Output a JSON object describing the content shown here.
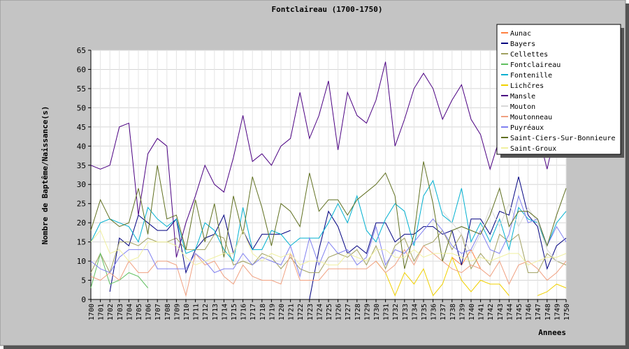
{
  "chart_data": {
    "type": "line",
    "title": "Fontclaireau (1700-1750)",
    "xlabel": "Annees",
    "ylabel": "Nombre de Baptême/Naissance(s)",
    "ylim": [
      0,
      65
    ],
    "yticks": [
      0,
      5,
      10,
      15,
      20,
      25,
      30,
      35,
      40,
      45,
      50,
      55,
      60,
      65
    ],
    "grid": true,
    "legend_position": "top-right",
    "x": [
      1700,
      1701,
      1702,
      1703,
      1704,
      1705,
      1706,
      1707,
      1708,
      1709,
      1710,
      1711,
      1712,
      1713,
      1714,
      1715,
      1716,
      1717,
      1718,
      1719,
      1720,
      1721,
      1722,
      1723,
      1724,
      1725,
      1726,
      1727,
      1728,
      1729,
      1730,
      1731,
      1732,
      1733,
      1734,
      1735,
      1736,
      1737,
      1738,
      1739,
      1740,
      1741,
      1742,
      1743,
      1744,
      1745,
      1746,
      1747,
      1748,
      1749,
      1750
    ],
    "series": [
      {
        "name": "Aunac",
        "color": "#ff8040",
        "values": [
          null,
          null,
          null,
          null,
          null,
          null,
          null,
          null,
          null,
          null,
          null,
          null,
          null,
          null,
          null,
          null,
          null,
          null,
          null,
          null,
          null,
          null,
          null,
          null,
          null,
          null,
          null,
          null,
          null,
          null,
          null,
          null,
          null,
          null,
          null,
          null,
          null,
          null,
          11,
          9,
          13,
          8,
          null,
          null,
          null,
          null,
          null,
          null,
          null,
          null,
          null
        ]
      },
      {
        "name": "Bayers",
        "color": "#000080",
        "values": [
          null,
          null,
          2,
          16,
          14,
          22,
          20,
          18,
          18,
          21,
          7,
          13,
          16,
          17,
          22,
          12,
          18,
          13,
          17,
          17,
          17,
          18,
          null,
          0,
          13,
          23,
          19,
          12,
          14,
          12,
          20,
          20,
          15,
          17,
          17,
          19,
          19,
          17,
          18,
          9,
          21,
          21,
          17,
          23,
          22,
          32,
          22,
          19,
          8,
          14,
          16
        ]
      },
      {
        "name": "Cellettes",
        "color": "#a0a060",
        "values": [
          7,
          12,
          7,
          15,
          15,
          14,
          16,
          15,
          15,
          16,
          13,
          13,
          13,
          17,
          16,
          9,
          10,
          9,
          12,
          11,
          8,
          11,
          8,
          7,
          7,
          11,
          12,
          11,
          13,
          9,
          14,
          8,
          14,
          16,
          10,
          14,
          15,
          18,
          13,
          17,
          8,
          12,
          9,
          17,
          15,
          17,
          7,
          7,
          12,
          10,
          9
        ]
      },
      {
        "name": "Fontclaireau",
        "color": "#60c060",
        "values": [
          3,
          12,
          4,
          5,
          7,
          6,
          3,
          null,
          null,
          null,
          null,
          null,
          null,
          null,
          null,
          null,
          null,
          null,
          null,
          null,
          null,
          null,
          null,
          null,
          null,
          null,
          null,
          null,
          null,
          null,
          null,
          null,
          null,
          null,
          null,
          null,
          null,
          null,
          null,
          null,
          null,
          null,
          null,
          null,
          null,
          null,
          null,
          null,
          null,
          null,
          null
        ]
      },
      {
        "name": "Fontenille",
        "color": "#00b0d0",
        "values": [
          15,
          20,
          21,
          20,
          19,
          15,
          24,
          21,
          19,
          21,
          12,
          13,
          20,
          18,
          13,
          10,
          24,
          13,
          13,
          18,
          17,
          14,
          16,
          16,
          16,
          20,
          25,
          20,
          27,
          18,
          15,
          21,
          25,
          23,
          14,
          27,
          31,
          22,
          20,
          29,
          15,
          20,
          15,
          21,
          13,
          24,
          21,
          20,
          14,
          20,
          23
        ]
      },
      {
        "name": "Lichčres",
        "color": "#f0d000",
        "values": [
          null,
          null,
          null,
          null,
          null,
          null,
          null,
          null,
          null,
          null,
          null,
          null,
          null,
          null,
          null,
          null,
          null,
          null,
          null,
          null,
          null,
          null,
          null,
          null,
          null,
          null,
          null,
          null,
          null,
          null,
          10,
          7,
          1,
          7,
          4,
          8,
          1,
          4,
          11,
          5,
          2,
          5,
          4,
          4,
          1,
          null,
          null,
          1,
          2,
          4,
          3
        ]
      },
      {
        "name": "Mansle",
        "color": "#4b0082",
        "values": [
          35,
          34,
          35,
          45,
          46,
          22,
          38,
          42,
          40,
          11,
          20,
          27,
          35,
          30,
          28,
          37,
          48,
          36,
          38,
          35,
          40,
          42,
          54,
          42,
          48,
          57,
          39,
          54,
          48,
          46,
          52,
          62,
          40,
          47,
          55,
          59,
          55,
          47,
          52,
          56,
          47,
          43,
          34,
          42,
          44,
          45,
          44,
          44,
          34,
          45,
          49
        ]
      },
      {
        "name": "Mouton",
        "color": "#d8d8d8",
        "values": [
          null,
          null,
          null,
          null,
          null,
          null,
          null,
          null,
          null,
          null,
          null,
          null,
          null,
          null,
          null,
          null,
          null,
          null,
          null,
          null,
          null,
          null,
          null,
          null,
          null,
          null,
          null,
          null,
          null,
          null,
          null,
          null,
          null,
          null,
          null,
          null,
          null,
          23,
          20,
          17,
          12,
          17,
          24,
          19,
          25,
          19,
          24,
          20,
          13,
          10,
          10
        ]
      },
      {
        "name": "Moutonneau",
        "color": "#f0a080",
        "values": [
          6,
          5,
          7,
          5,
          10,
          7,
          7,
          10,
          10,
          9,
          1,
          12,
          9,
          10,
          6,
          4,
          9,
          6,
          5,
          5,
          4,
          12,
          5,
          5,
          5,
          8,
          8,
          8,
          8,
          8,
          10,
          7,
          9,
          13,
          9,
          14,
          12,
          10,
          8,
          7,
          9,
          8,
          6,
          10,
          4,
          9,
          10,
          8,
          5,
          7,
          10
        ]
      },
      {
        "name": "Puyréaux",
        "color": "#8080f0",
        "values": [
          10,
          8,
          7,
          11,
          13,
          13,
          13,
          8,
          8,
          8,
          8,
          12,
          10,
          7,
          8,
          8,
          12,
          9,
          11,
          10,
          9,
          14,
          6,
          16,
          9,
          15,
          12,
          13,
          9,
          11,
          19,
          9,
          13,
          12,
          15,
          18,
          21,
          18,
          14,
          12,
          13,
          18,
          13,
          12,
          17,
          27,
          20,
          21,
          14,
          19,
          15
        ]
      },
      {
        "name": "Saint-Ciers-Sur-Bonnieure",
        "color": "#607020",
        "values": [
          18,
          26,
          21,
          19,
          20,
          29,
          17,
          35,
          21,
          22,
          13,
          26,
          15,
          25,
          11,
          27,
          17,
          32,
          24,
          14,
          25,
          23,
          19,
          33,
          23,
          26,
          26,
          22,
          26,
          28,
          30,
          33,
          27,
          8,
          17,
          36,
          25,
          10,
          18,
          19,
          18,
          17,
          22,
          29,
          19,
          23,
          23,
          21,
          14,
          22,
          29
        ]
      },
      {
        "name": "Saint-Groux",
        "color": "#f0f0a0",
        "values": [
          15,
          18,
          12,
          13,
          10,
          11,
          15,
          15,
          15,
          14,
          11,
          9,
          10,
          11,
          12,
          12,
          18,
          12,
          10,
          12,
          11,
          12,
          9,
          10,
          10,
          9,
          9,
          12,
          11,
          10,
          13,
          13,
          11,
          11,
          13,
          11,
          12,
          12,
          12,
          11,
          10,
          11,
          10,
          11,
          12,
          12,
          9,
          10,
          11,
          11,
          12
        ]
      }
    ]
  }
}
